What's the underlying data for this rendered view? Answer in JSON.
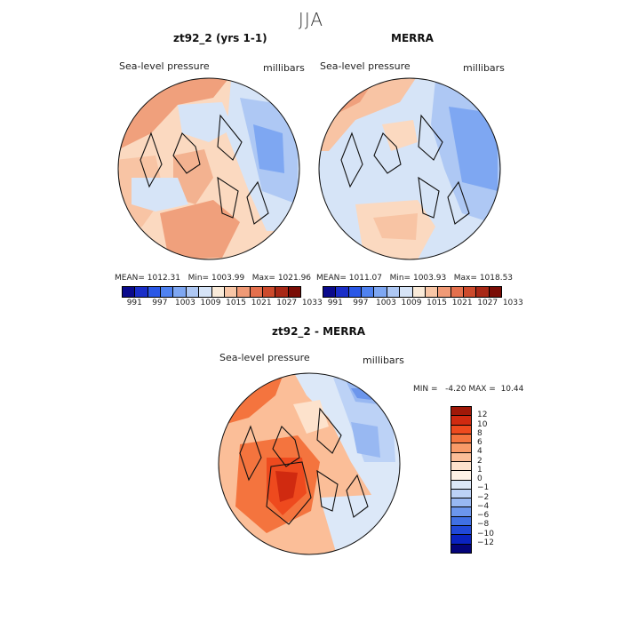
{
  "figure": {
    "season": "JJA"
  },
  "chart_data": [
    {
      "type": "heatmap",
      "projection": "north-polar-stereographic",
      "title": "zt92_2 (yrs 1-1)",
      "variable": "Sea-level pressure",
      "units": "millibars",
      "stats": {
        "mean_label": "MEAN=",
        "mean": "1012.31",
        "min_label": "Min=",
        "min": "1003.99",
        "max_label": "Max=",
        "max": "1021.96"
      },
      "colorbar": {
        "colors": [
          "#0a0a8c",
          "#1a2ec8",
          "#2b58e6",
          "#4f82f0",
          "#7ea7f2",
          "#aec8f4",
          "#d6e4f7",
          "#faebd9",
          "#f8c6a6",
          "#f09a76",
          "#e4704d",
          "#cc4a2c",
          "#a82816",
          "#7a0d06"
        ],
        "tick_labels": [
          "991",
          "997",
          "1003",
          "1009",
          "1015",
          "1021",
          "1027",
          "1033"
        ]
      }
    },
    {
      "type": "heatmap",
      "projection": "north-polar-stereographic",
      "title": "MERRA",
      "variable": "Sea-level pressure",
      "units": "millibars",
      "stats": {
        "mean_label": "MEAN=",
        "mean": "1011.07",
        "min_label": "Min=",
        "min": "1003.93",
        "max_label": "Max=",
        "max": "1018.53"
      },
      "colorbar": {
        "colors": [
          "#0a0a8c",
          "#1a2ec8",
          "#2b58e6",
          "#4f82f0",
          "#7ea7f2",
          "#aec8f4",
          "#d6e4f7",
          "#faebd9",
          "#f8c6a6",
          "#f09a76",
          "#e4704d",
          "#cc4a2c",
          "#a82816",
          "#7a0d06"
        ],
        "tick_labels": [
          "991",
          "997",
          "1003",
          "1009",
          "1015",
          "1021",
          "1027",
          "1033"
        ]
      }
    },
    {
      "type": "heatmap",
      "projection": "north-polar-stereographic",
      "title": "zt92_2 - MERRA",
      "variable": "Sea-level pressure",
      "units": "millibars",
      "stats": {
        "min_label": "MIN =",
        "min": "-4.20",
        "max_label": "MAX =",
        "max": "10.44"
      },
      "colorbar": {
        "colors": [
          "#a01808",
          "#d02a10",
          "#ee4a1e",
          "#f4743e",
          "#f89a68",
          "#fbbe98",
          "#fde2cc",
          "#fdf2e6",
          "#dce8f8",
          "#bcd2f6",
          "#98b8f2",
          "#6c96ec",
          "#4070e4",
          "#2048d8",
          "#0a22c0",
          "#04047a"
        ],
        "tick_labels": [
          "12",
          "10",
          "8",
          "6",
          "4",
          "2",
          "1",
          "0",
          "−1",
          "−2",
          "−4",
          "−6",
          "−8",
          "−10",
          "−12"
        ]
      }
    }
  ]
}
